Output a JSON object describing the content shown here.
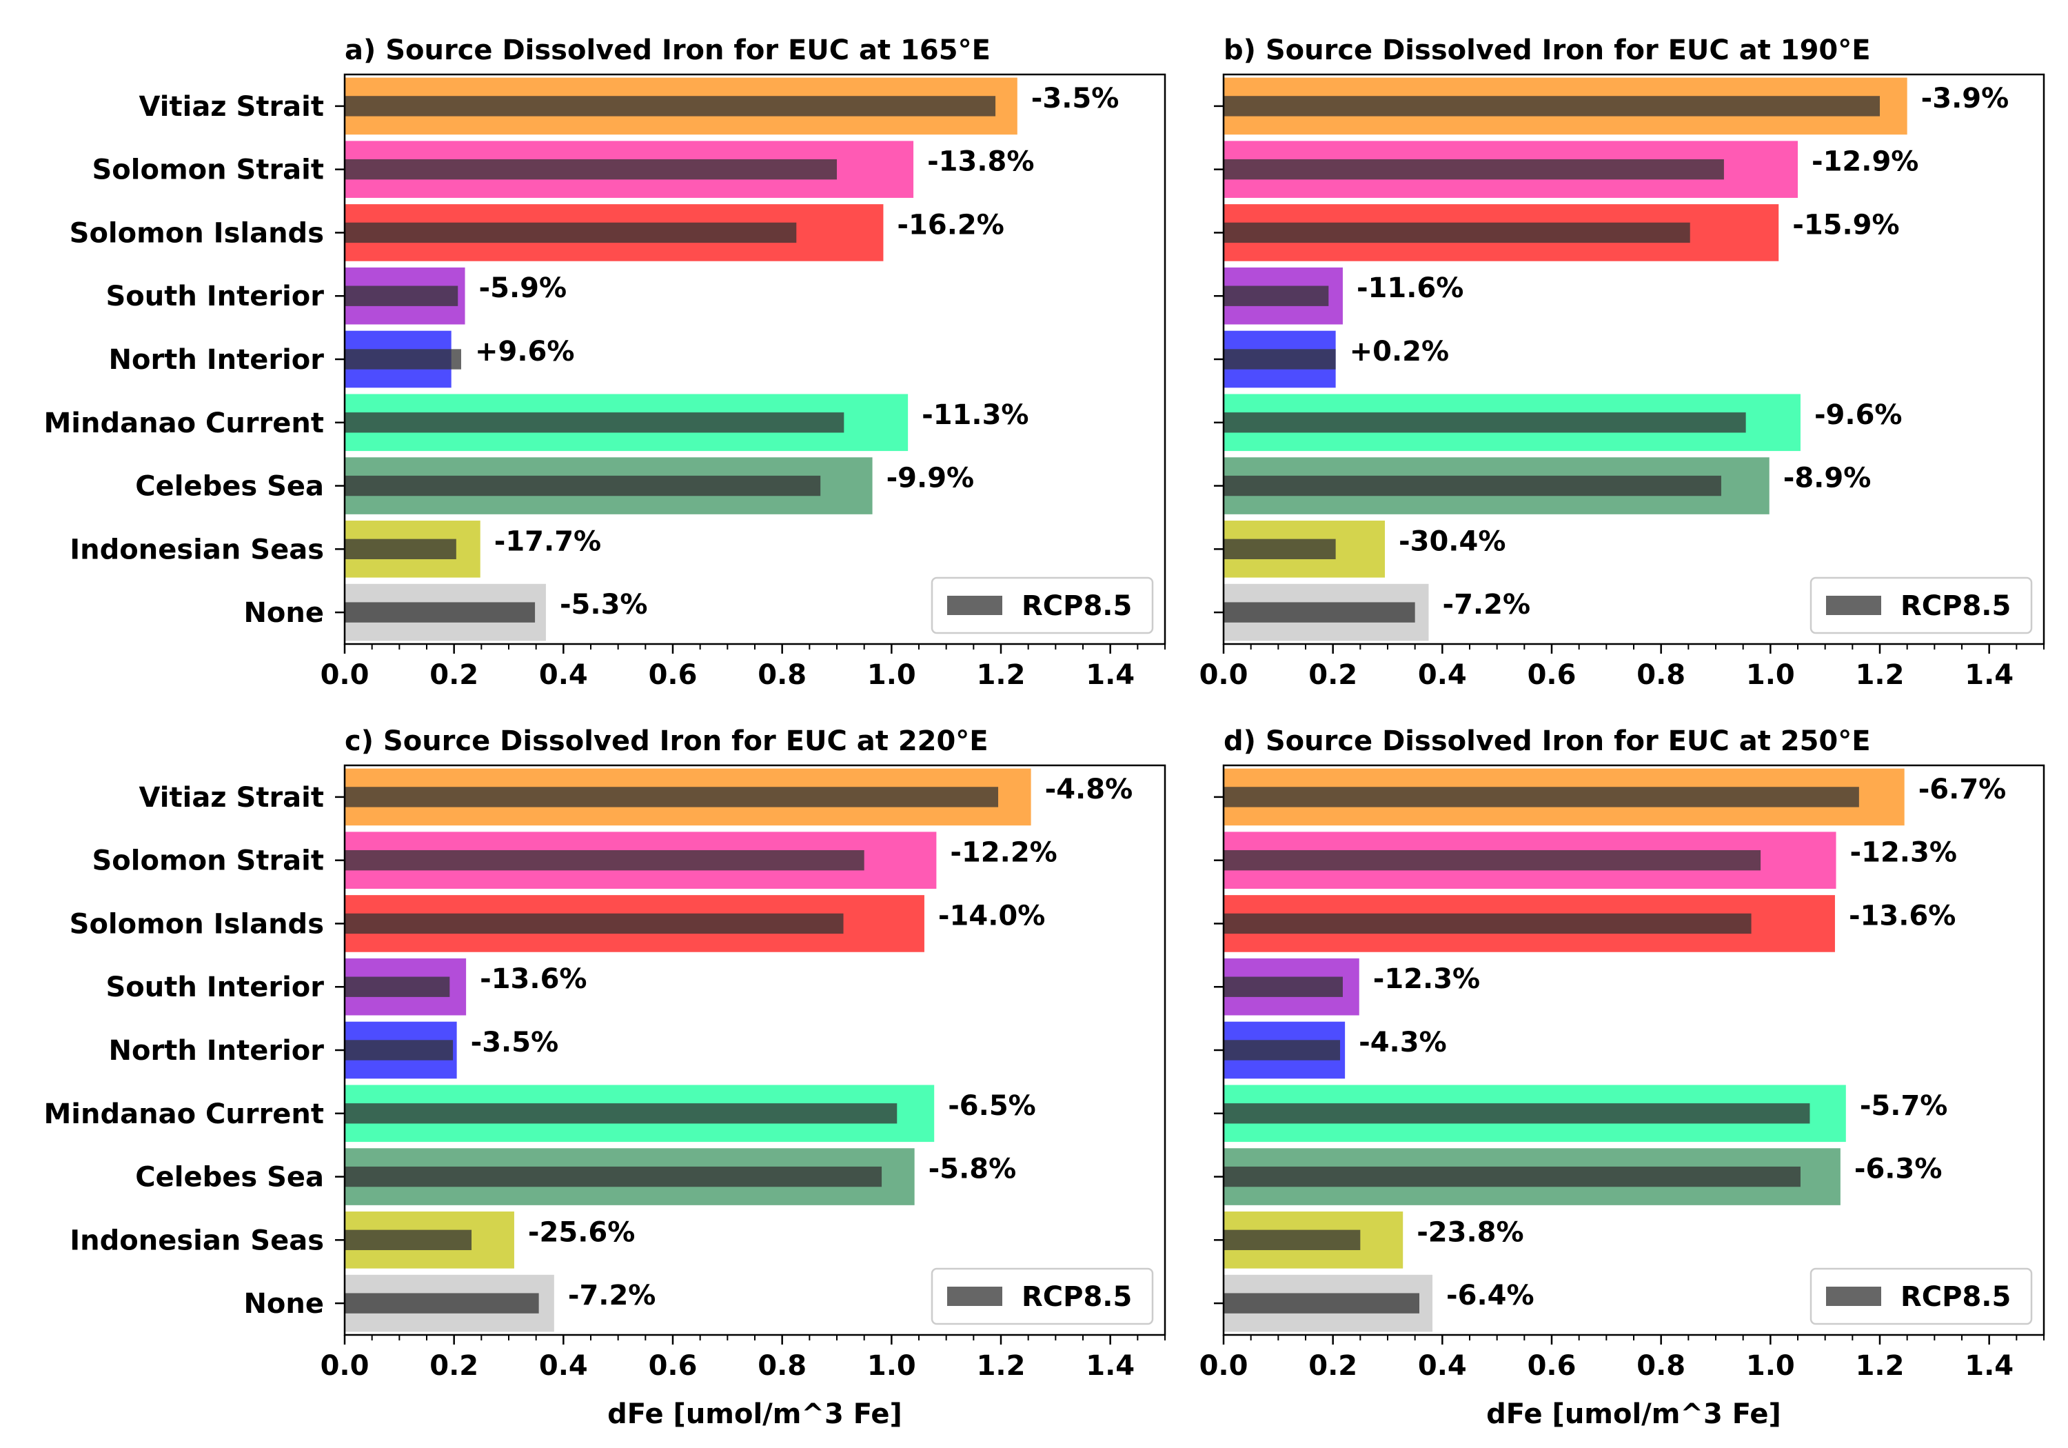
{
  "chart_data": [
    {
      "type": "bar",
      "title": "a) Source Dissolved Iron for EUC at 165°E",
      "xlabel": "",
      "xlim": [
        0,
        1.5
      ],
      "xticks": [
        "0.0",
        "0.2",
        "0.4",
        "0.6",
        "0.8",
        "1.0",
        "1.2",
        "1.4"
      ],
      "categories": [
        "Vitiaz Strait",
        "Solomon Strait",
        "Solomon Islands",
        "South Interior",
        "North Interior",
        "Mindanao Current",
        "Celebes Sea",
        "Indonesian Seas",
        "None"
      ],
      "series": [
        {
          "values": [
            1.23,
            1.04,
            0.985,
            0.22,
            0.195,
            1.03,
            0.965,
            0.248,
            0.368
          ]
        },
        {
          "name": "RCP8.5",
          "values": [
            1.19,
            0.9,
            0.826,
            0.207,
            0.213,
            0.913,
            0.87,
            0.204,
            0.348
          ]
        }
      ],
      "change_labels": [
        "-3.5%",
        "-13.8%",
        "-16.2%",
        "-5.9%",
        "+9.6%",
        "-11.3%",
        "-9.9%",
        "-17.7%",
        "-5.3%"
      ],
      "legend": "lower-right",
      "grid": false
    },
    {
      "type": "bar",
      "title": "b) Source Dissolved Iron for EUC at 190°E",
      "xlabel": "",
      "xlim": [
        0,
        1.5
      ],
      "xticks": [
        "0.0",
        "0.2",
        "0.4",
        "0.6",
        "0.8",
        "1.0",
        "1.2",
        "1.4"
      ],
      "categories": [
        "Vitiaz Strait",
        "Solomon Strait",
        "Solomon Islands",
        "South Interior",
        "North Interior",
        "Mindanao Current",
        "Celebes Sea",
        "Indonesian Seas",
        "None"
      ],
      "series": [
        {
          "values": [
            1.25,
            1.05,
            1.015,
            0.218,
            0.205,
            1.055,
            0.998,
            0.295,
            0.375
          ]
        },
        {
          "name": "RCP8.5",
          "values": [
            1.2,
            0.915,
            0.853,
            0.192,
            0.205,
            0.955,
            0.91,
            0.205,
            0.35
          ]
        }
      ],
      "change_labels": [
        "-3.9%",
        "-12.9%",
        "-15.9%",
        "-11.6%",
        "+0.2%",
        "-9.6%",
        "-8.9%",
        "-30.4%",
        "-7.2%"
      ],
      "legend": "lower-right",
      "grid": false
    },
    {
      "type": "bar",
      "title": "c) Source Dissolved Iron for EUC at 220°E",
      "xlabel": "dFe [umol/m^3 Fe]",
      "xlim": [
        0,
        1.5
      ],
      "xticks": [
        "0.0",
        "0.2",
        "0.4",
        "0.6",
        "0.8",
        "1.0",
        "1.2",
        "1.4"
      ],
      "categories": [
        "Vitiaz Strait",
        "Solomon Strait",
        "Solomon Islands",
        "South Interior",
        "North Interior",
        "Mindanao Current",
        "Celebes Sea",
        "Indonesian Seas",
        "None"
      ],
      "series": [
        {
          "values": [
            1.255,
            1.082,
            1.06,
            0.222,
            0.205,
            1.078,
            1.042,
            0.31,
            0.383
          ]
        },
        {
          "name": "RCP8.5",
          "values": [
            1.195,
            0.95,
            0.912,
            0.192,
            0.198,
            1.01,
            0.982,
            0.232,
            0.355
          ]
        }
      ],
      "change_labels": [
        "-4.8%",
        "-12.2%",
        "-14.0%",
        "-13.6%",
        "-3.5%",
        "-6.5%",
        "-5.8%",
        "-25.6%",
        "-7.2%"
      ],
      "legend": "lower-right",
      "grid": false
    },
    {
      "type": "bar",
      "title": "d) Source Dissolved Iron for EUC at 250°E",
      "xlabel": "dFe [umol/m^3 Fe]",
      "xlim": [
        0,
        1.5
      ],
      "xticks": [
        "0.0",
        "0.2",
        "0.4",
        "0.6",
        "0.8",
        "1.0",
        "1.2",
        "1.4"
      ],
      "categories": [
        "Vitiaz Strait",
        "Solomon Strait",
        "Solomon Islands",
        "South Interior",
        "North Interior",
        "Mindanao Current",
        "Celebes Sea",
        "Indonesian Seas",
        "None"
      ],
      "series": [
        {
          "values": [
            1.245,
            1.12,
            1.118,
            0.248,
            0.222,
            1.138,
            1.128,
            0.328,
            0.382
          ]
        },
        {
          "name": "RCP8.5",
          "values": [
            1.162,
            0.982,
            0.965,
            0.218,
            0.213,
            1.072,
            1.055,
            0.25,
            0.358
          ]
        }
      ],
      "change_labels": [
        "-6.7%",
        "-12.3%",
        "-13.6%",
        "-12.3%",
        "-4.3%",
        "-5.7%",
        "-6.3%",
        "-23.8%",
        "-6.4%"
      ],
      "legend": "lower-right",
      "grid": false
    }
  ],
  "colors": {
    "sources": [
      "#ffaa4d",
      "#ff5ab4",
      "#ff4d4d",
      "#b34dd9",
      "#4d4dff",
      "#4dffb4",
      "#6fb08a",
      "#d4d44d",
      "#d3d3d3"
    ],
    "rcp_bar": "#333333",
    "axis": "#000000"
  }
}
